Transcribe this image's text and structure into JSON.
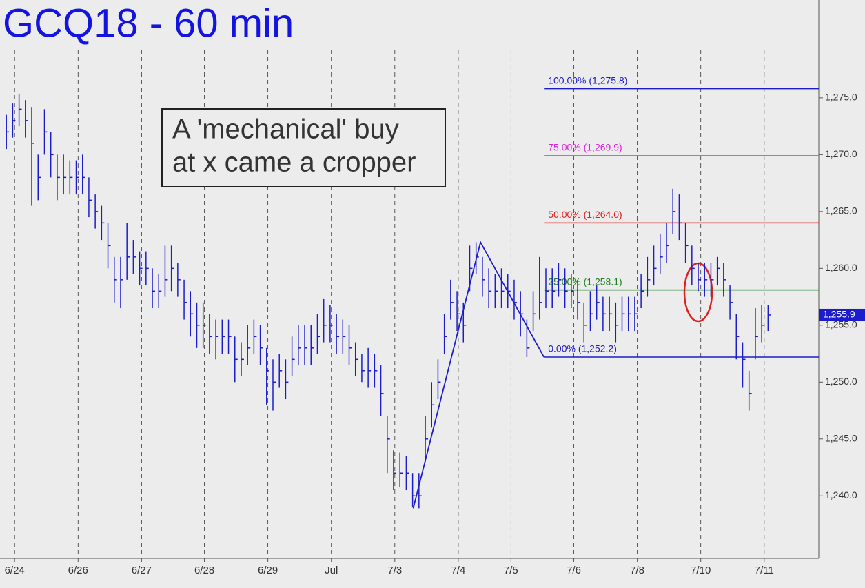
{
  "chart_data": {
    "type": "ohlc",
    "title": "GCQ18 - 60 min",
    "annotation": [
      "A 'mechanical' buy",
      "at x came a cropper"
    ],
    "color": "#1c1ccc",
    "xlim": [
      0,
      129
    ],
    "xticks": [
      {
        "value": 2.3,
        "label": "6/24"
      },
      {
        "value": 12.3,
        "label": "6/26"
      },
      {
        "value": 22.3,
        "label": "6/27"
      },
      {
        "value": 32.2,
        "label": "6/28"
      },
      {
        "value": 42.2,
        "label": "6/29"
      },
      {
        "value": 52.2,
        "label": "Jul"
      },
      {
        "value": 62.2,
        "label": "7/3"
      },
      {
        "value": 72.2,
        "label": "7/4"
      },
      {
        "value": 80.5,
        "label": "7/5"
      },
      {
        "value": 90.4,
        "label": "7/6"
      },
      {
        "value": 100.4,
        "label": "7/8"
      },
      {
        "value": 110.4,
        "label": "7/10"
      },
      {
        "value": 120.4,
        "label": "7/11"
      }
    ],
    "ylim": [
      1234.5,
      1283.6
    ],
    "yticks": [
      {
        "value": 1240,
        "label": "1,240.0"
      },
      {
        "value": 1245,
        "label": "1,245.0"
      },
      {
        "value": 1250,
        "label": "1,250.0"
      },
      {
        "value": 1255,
        "label": "1,255.0"
      },
      {
        "value": 1260,
        "label": "1,260.0"
      },
      {
        "value": 1265,
        "label": "1,265.0"
      },
      {
        "value": 1270,
        "label": "1,270.0"
      },
      {
        "value": 1275,
        "label": "1,275.0"
      }
    ],
    "highs": [
      1273.5,
      1274.5,
      1275.3,
      1274.8,
      1274.2,
      1270,
      1274,
      1272,
      1270,
      1270,
      1269.5,
      1269.5,
      1270,
      1268,
      1266.5,
      1265.5,
      1264,
      1261,
      1261,
      1264,
      1262.5,
      1261.5,
      1261.5,
      1260,
      1259.5,
      1262,
      1262,
      1260.5,
      1259,
      1258,
      1257,
      1257,
      1256,
      1255.5,
      1255.5,
      1255.5,
      1254,
      1253.5,
      1255,
      1255.5,
      1255,
      1253,
      1252,
      1252.5,
      1252,
      1254,
      1255,
      1255,
      1255,
      1256,
      1257.3,
      1256.8,
      1256,
      1255.5,
      1255,
      1253.5,
      1252.5,
      1253,
      1252.5,
      1251.5,
      1247,
      1244,
      1243.8,
      1243.5,
      1242,
      1242,
      1247,
      1250,
      1252,
      1256,
      1259,
      1258,
      1257,
      1262,
      1262.3,
      1261,
      1260,
      1259.5,
      1260,
      1259.5,
      1259,
      1258,
      1255.5,
      1258,
      1261,
      1260,
      1260,
      1260.5,
      1260,
      1259.5,
      1259,
      1257,
      1258,
      1258.5,
      1257.5,
      1257.5,
      1257,
      1257.5,
      1257.5,
      1257.5,
      1259.5,
      1261,
      1262,
      1263,
      1264,
      1267,
      1266.5,
      1264,
      1262,
      1260.5,
      1260.5,
      1260.5,
      1261,
      1260.5,
      1258.5,
      1256,
      1253.5,
      1251,
      1256.5,
      1256.8,
      1256.8
    ],
    "lows": [
      1270.5,
      1271.5,
      1272.5,
      1271.5,
      1265.5,
      1266,
      1270,
      1268,
      1266,
      1266.5,
      1266.5,
      1266.5,
      1266.5,
      1264.5,
      1263.5,
      1262.5,
      1260,
      1257,
      1256.5,
      1259,
      1259.5,
      1258.5,
      1258.5,
      1256.5,
      1256.5,
      1257.5,
      1258,
      1257.5,
      1255.5,
      1254,
      1253,
      1253,
      1252.5,
      1252,
      1252.5,
      1252.5,
      1250,
      1250.5,
      1251.5,
      1252.5,
      1251.5,
      1248,
      1247.5,
      1249.5,
      1248.5,
      1250.5,
      1251.5,
      1251.5,
      1251.5,
      1252.5,
      1253.5,
      1253.5,
      1252.5,
      1252.5,
      1251.5,
      1250.5,
      1250,
      1249.5,
      1249.5,
      1247,
      1242,
      1240.5,
      1240.8,
      1240.5,
      1239,
      1238.9,
      1243,
      1246,
      1248.5,
      1252.5,
      1255.5,
      1254.5,
      1253.5,
      1258,
      1259.5,
      1257.5,
      1256.5,
      1256.5,
      1256.5,
      1256.5,
      1255.5,
      1254,
      1252.2,
      1254.5,
      1255.5,
      1256.5,
      1256.5,
      1257.5,
      1256.5,
      1256.5,
      1255.5,
      1253.5,
      1254.5,
      1255.5,
      1254.5,
      1254.5,
      1253.5,
      1254.5,
      1254.5,
      1254.5,
      1256.5,
      1257.5,
      1258.5,
      1259.5,
      1260.5,
      1263,
      1262.5,
      1260.5,
      1258.5,
      1258,
      1257.5,
      1257.5,
      1258.5,
      1257.5,
      1255.5,
      1252,
      1249.5,
      1247.5,
      1252,
      1253.5,
      1254.5
    ],
    "closes": [
      1272,
      1273,
      1274,
      1273,
      1271,
      1268,
      1272,
      1270,
      1268,
      1268,
      1268,
      1268,
      1268,
      1266,
      1265,
      1264,
      1262,
      1259,
      1259,
      1261,
      1261,
      1260,
      1260,
      1258,
      1258,
      1259,
      1260,
      1259,
      1257,
      1256,
      1255,
      1255,
      1254,
      1254,
      1254,
      1254,
      1252,
      1252,
      1253,
      1254,
      1253,
      1251,
      1250,
      1251,
      1250,
      1252,
      1253,
      1253,
      1253,
      1254,
      1255,
      1255,
      1254,
      1254,
      1253,
      1252,
      1251,
      1251,
      1251,
      1249,
      1245,
      1242,
      1242,
      1242,
      1240,
      1240,
      1245,
      1248,
      1250,
      1254,
      1257,
      1256,
      1255,
      1260,
      1261,
      1259,
      1258,
      1258,
      1258,
      1258,
      1257,
      1256,
      1253,
      1256,
      1257,
      1258,
      1258,
      1259,
      1258,
      1258,
      1257,
      1255,
      1256,
      1257,
      1256,
      1256,
      1255,
      1256,
      1256,
      1256,
      1258,
      1259,
      1260,
      1261,
      1262,
      1265,
      1264,
      1262,
      1260,
      1259,
      1259,
      1259,
      1260,
      1259,
      1257,
      1254,
      1252,
      1249,
      1254,
      1255,
      1255.9
    ],
    "zigzag": {
      "x": [
        65.1,
        75.7,
        85.7
      ],
      "y": [
        1238.9,
        1262.3,
        1252.2
      ]
    },
    "fib": {
      "x_start": 85.7,
      "levels": [
        {
          "label": "100.00% (1,275.8)",
          "value": 1275.8,
          "color": "#1c1ccc"
        },
        {
          "label": "75.00% (1,269.9)",
          "value": 1269.9,
          "color": "#e020e0"
        },
        {
          "label": "50.00% (1,264.0)",
          "value": 1264.0,
          "color": "#e02020"
        },
        {
          "label": "25.00% (1,258.1)",
          "value": 1258.1,
          "color": "#208020"
        },
        {
          "label": "0.00% (1,252.2)",
          "value": 1252.2,
          "color": "#1c1ccc"
        }
      ]
    },
    "last": {
      "value": 1255.9,
      "label": "1,255.9"
    }
  }
}
